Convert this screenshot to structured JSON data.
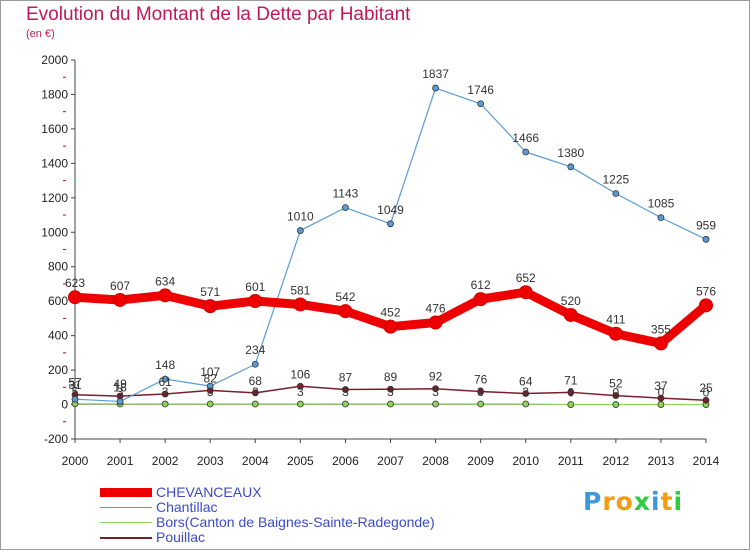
{
  "title": "Evolution du Montant de la Dette par Habitant",
  "unit": "(en €)",
  "logo": {
    "text": "Proxiti",
    "letters": [
      "P",
      "r",
      "o",
      "x",
      "i",
      "t",
      "i"
    ],
    "colors": [
      "#3a9ad9",
      "#f39c12",
      "#f39c12",
      "#2ecc40",
      "#3a9ad9",
      "#f39c12",
      "#2ecc40"
    ]
  },
  "chart_data": {
    "type": "line",
    "title": "Evolution du Montant de la Dette par Habitant",
    "ylabel": "(en €)",
    "xlabel": "",
    "x": [
      "2000",
      "2001",
      "2002",
      "2003",
      "2004",
      "2005",
      "2006",
      "2007",
      "2008",
      "2009",
      "2010",
      "2011",
      "2012",
      "2013",
      "2014"
    ],
    "ylim": [
      -200,
      2000
    ],
    "yticks": [
      -200,
      0,
      200,
      400,
      600,
      800,
      1000,
      1200,
      1400,
      1600,
      1800,
      2000
    ],
    "grid": false,
    "legend_position": "bottom-left",
    "series": [
      {
        "name": "CHEVANCEAUX",
        "color": "#ee0000",
        "values": [
          623,
          607,
          634,
          571,
          601,
          581,
          542,
          452,
          476,
          612,
          652,
          520,
          411,
          355,
          576
        ],
        "labels": [
          "623",
          "607",
          "634",
          "571",
          "601",
          "581",
          "542",
          "452",
          "476",
          "612",
          "652",
          "520",
          "411",
          "355",
          "576"
        ]
      },
      {
        "name": "Chantillac",
        "color": "#5b9bd5",
        "values": [
          31,
          18,
          148,
          107,
          234,
          1010,
          1143,
          1049,
          1837,
          1746,
          1466,
          1380,
          1225,
          1085,
          959
        ],
        "labels": [
          "31",
          "18",
          "148",
          "107",
          "234",
          "1010",
          "1143",
          "1049",
          "1837",
          "1746",
          "1466",
          "1380",
          "1225",
          "1085",
          "959"
        ]
      },
      {
        "name": "Bors(Canton de Baignes-Sainte-Radegonde)",
        "color": "#8fd45a",
        "values": [
          5,
          3,
          3,
          3,
          3,
          3,
          3,
          3,
          3,
          3,
          3,
          0,
          0,
          0,
          0
        ],
        "labels": [
          "5",
          "3",
          "3",
          "3",
          "3",
          "3",
          "3",
          "3",
          "3",
          "3",
          "3",
          "0",
          "0",
          "0",
          "0"
        ]
      },
      {
        "name": "Pouillac",
        "color": "#7a1f2b",
        "values": [
          57,
          49,
          61,
          82,
          68,
          106,
          87,
          89,
          92,
          76,
          64,
          71,
          52,
          37,
          25
        ],
        "labels": [
          "57",
          "49",
          "61",
          "82",
          "68",
          "106",
          "87",
          "89",
          "92",
          "76",
          "64",
          "71",
          "52",
          "37",
          "25"
        ]
      }
    ]
  }
}
